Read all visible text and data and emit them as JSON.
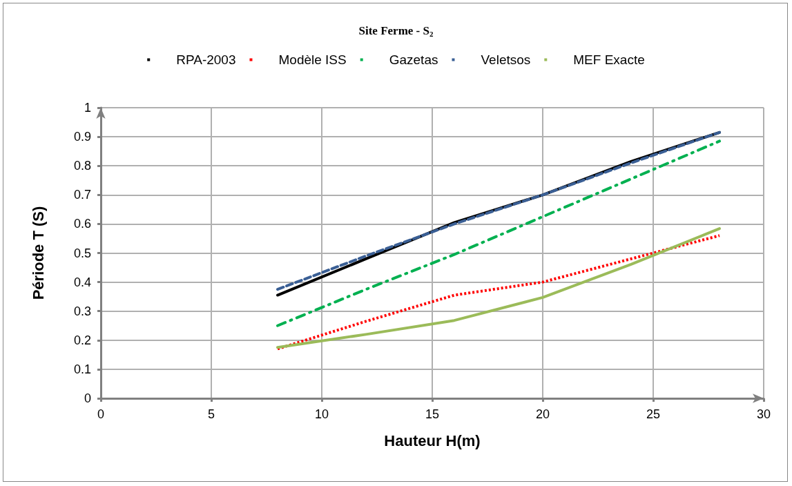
{
  "chart_data": {
    "type": "line",
    "title": "Site Ferme - S$_{2}$",
    "xlabel": "Hauteur H(m)",
    "ylabel": "Période T (S)",
    "x": [
      8,
      12,
      16,
      20,
      24,
      28
    ],
    "series": [
      {
        "name": "RPA-2003",
        "color": "#000000",
        "line_style": "solid",
        "values": [
          0.355,
          0.48,
          0.605,
          0.7,
          0.815,
          0.915
        ]
      },
      {
        "name": "Modèle ISS",
        "color": "#ff0000",
        "line_style": "dotted",
        "values": [
          0.17,
          0.265,
          0.355,
          0.4,
          0.48,
          0.56
        ]
      },
      {
        "name": "Gazetas",
        "color": "#00b050",
        "line_style": "dashdot",
        "values": [
          0.25,
          0.375,
          0.495,
          0.625,
          0.755,
          0.885
        ]
      },
      {
        "name": "Veletsos",
        "color": "#3a5f95",
        "line_style": "dashed",
        "values": [
          0.375,
          0.49,
          0.6,
          0.7,
          0.81,
          0.915
        ]
      },
      {
        "name": "MEF Exacte",
        "color": "#9bbb59",
        "line_style": "solid",
        "values": [
          0.175,
          0.22,
          0.268,
          0.347,
          0.461,
          0.584
        ]
      }
    ],
    "xlim": [
      0,
      30
    ],
    "xticks": [
      0,
      5,
      10,
      15,
      20,
      25,
      30
    ],
    "ylim": [
      0,
      1
    ],
    "yticks": [
      0,
      0.1,
      0.2,
      0.3,
      0.4,
      0.5,
      0.6,
      0.7,
      0.8,
      0.9,
      1
    ],
    "grid": true,
    "legend": "top",
    "marker": "none"
  }
}
